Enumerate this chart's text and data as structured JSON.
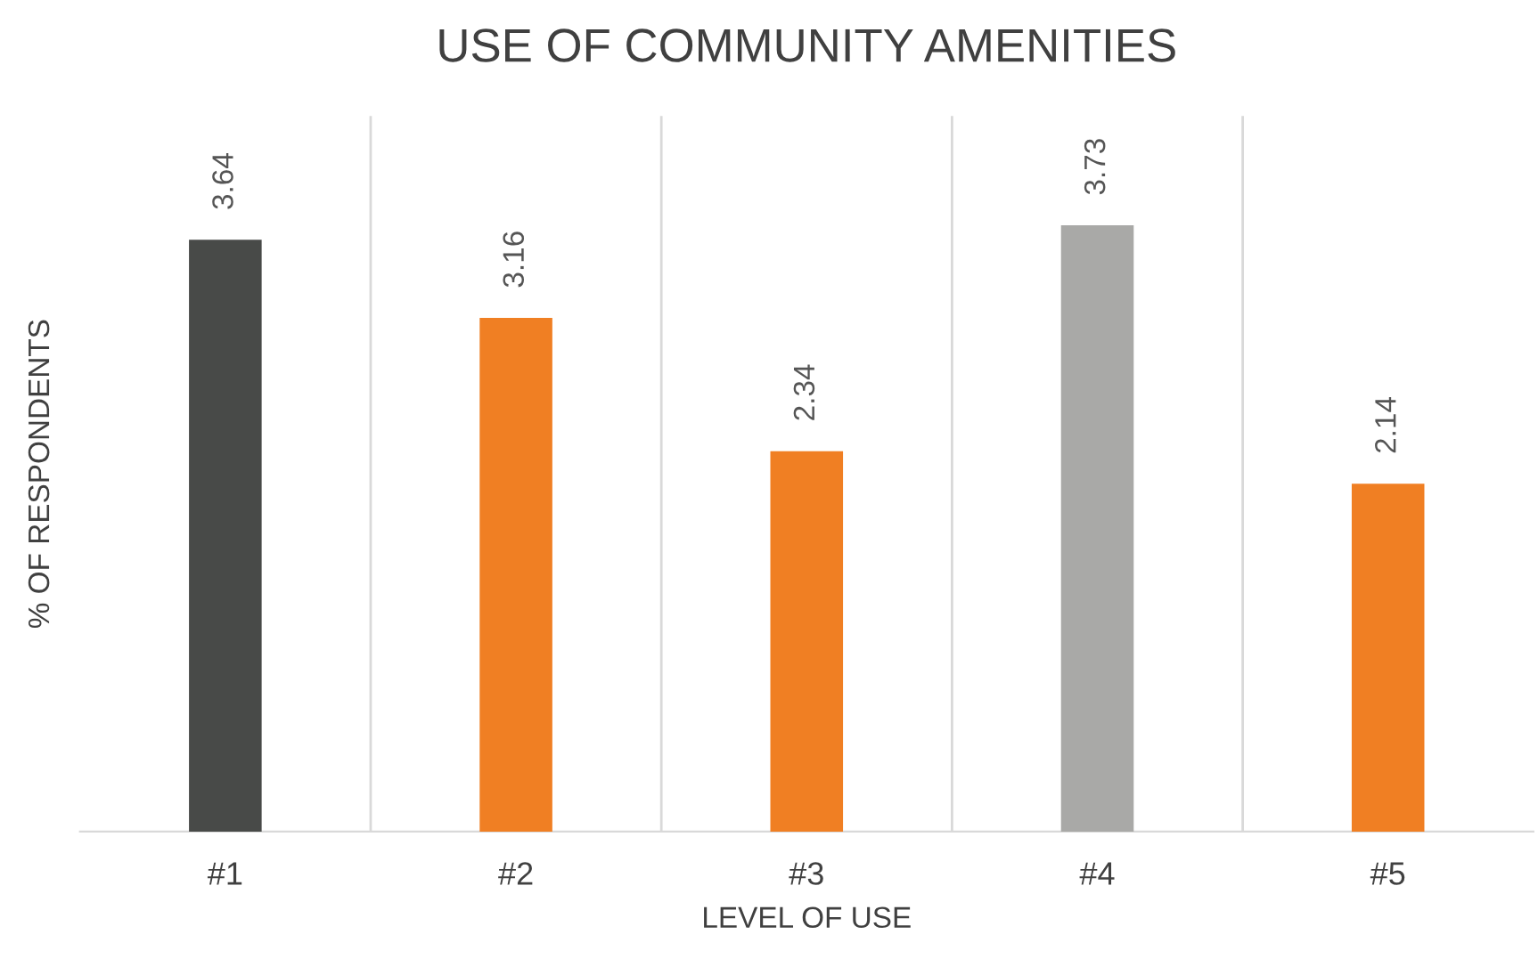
{
  "chart_data": {
    "type": "bar",
    "title": "USE OF COMMUNITY AMENITIES",
    "xlabel": "LEVEL OF USE",
    "ylabel": "% OF RESPONDENTS",
    "categories": [
      "#1",
      "#2",
      "#3",
      "#4",
      "#5"
    ],
    "values": [
      3.64,
      3.16,
      2.34,
      3.73,
      2.14
    ],
    "colors": [
      "#484a48",
      "#f07f23",
      "#f07f23",
      "#a9a9a7",
      "#f07f23"
    ],
    "data_labels": true,
    "grid": "x",
    "legend": false
  }
}
